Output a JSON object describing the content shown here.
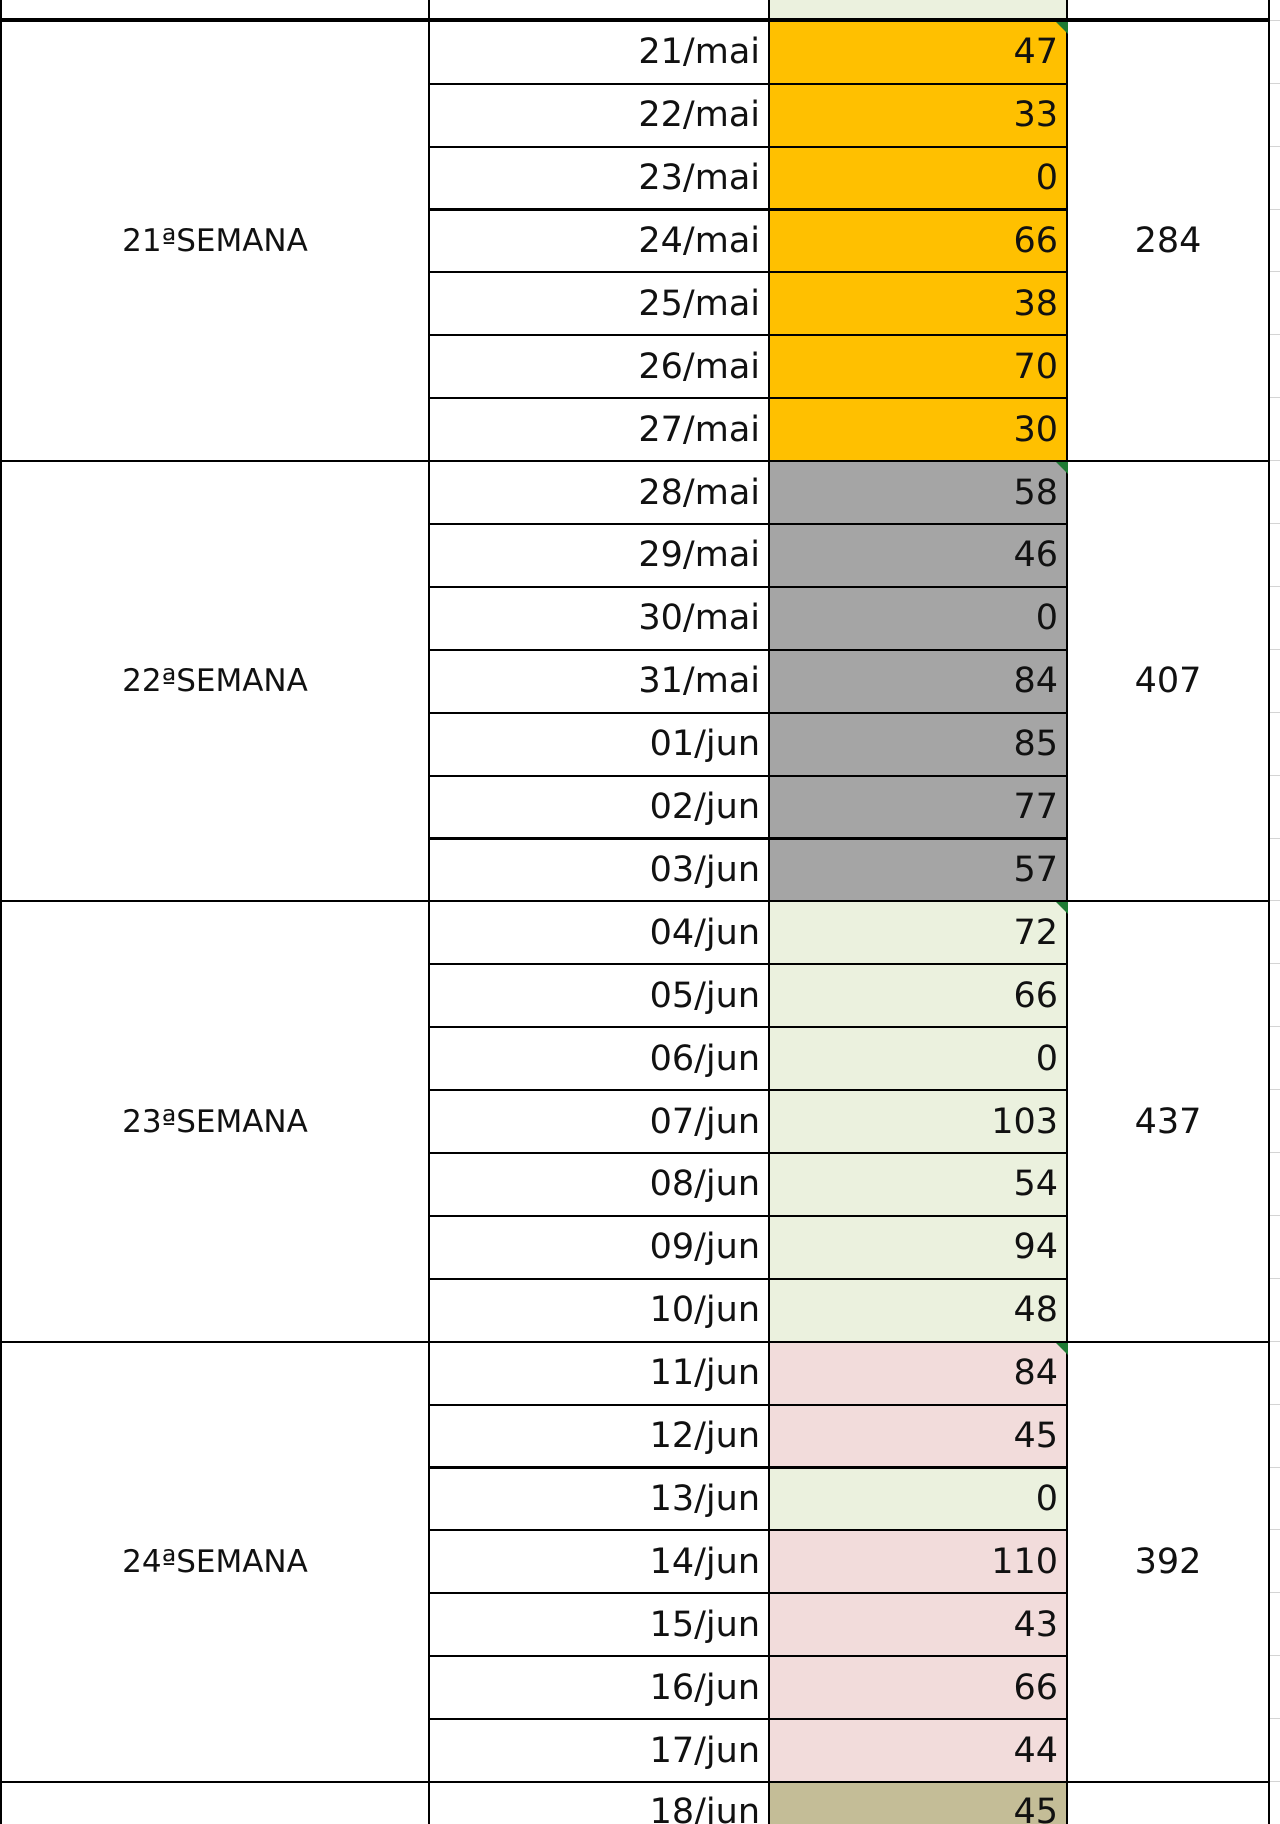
{
  "weeks": [
    {
      "label": "21ªSEMANA",
      "total": "284",
      "fill": "#ffc000",
      "days": [
        {
          "date": "21/mai",
          "value": "47"
        },
        {
          "date": "22/mai",
          "value": "33"
        },
        {
          "date": "23/mai",
          "value": "0"
        },
        {
          "date": "24/mai",
          "value": "66"
        },
        {
          "date": "25/mai",
          "value": "38"
        },
        {
          "date": "26/mai",
          "value": "70"
        },
        {
          "date": "27/mai",
          "value": "30"
        }
      ]
    },
    {
      "label": "22ªSEMANA",
      "total": "407",
      "fill": "#a5a5a5",
      "days": [
        {
          "date": "28/mai",
          "value": "58"
        },
        {
          "date": "29/mai",
          "value": "46"
        },
        {
          "date": "30/mai",
          "value": "0"
        },
        {
          "date": "31/mai",
          "value": "84"
        },
        {
          "date": "01/jun",
          "value": "85"
        },
        {
          "date": "02/jun",
          "value": "77"
        },
        {
          "date": "03/jun",
          "value": "57"
        }
      ]
    },
    {
      "label": "23ªSEMANA",
      "total": "437",
      "fill": "#ebf1de",
      "days": [
        {
          "date": "04/jun",
          "value": "72"
        },
        {
          "date": "05/jun",
          "value": "66"
        },
        {
          "date": "06/jun",
          "value": "0"
        },
        {
          "date": "07/jun",
          "value": "103"
        },
        {
          "date": "08/jun",
          "value": "54"
        },
        {
          "date": "09/jun",
          "value": "94"
        },
        {
          "date": "10/jun",
          "value": "48"
        }
      ]
    },
    {
      "label": "24ªSEMANA",
      "total": "392",
      "fill": "#f2dcdb",
      "days": [
        {
          "date": "11/jun",
          "value": "84"
        },
        {
          "date": "12/jun",
          "value": "45"
        },
        {
          "date": "13/jun",
          "value": "0",
          "fill": "#ebf1de"
        },
        {
          "date": "14/jun",
          "value": "110"
        },
        {
          "date": "15/jun",
          "value": "43"
        },
        {
          "date": "16/jun",
          "value": "66"
        },
        {
          "date": "17/jun",
          "value": "44"
        }
      ]
    }
  ],
  "next_row": {
    "date": "18/jun",
    "value": "45",
    "fill": "#c4bd97"
  },
  "prev_row_fill": "#ebf1de"
}
